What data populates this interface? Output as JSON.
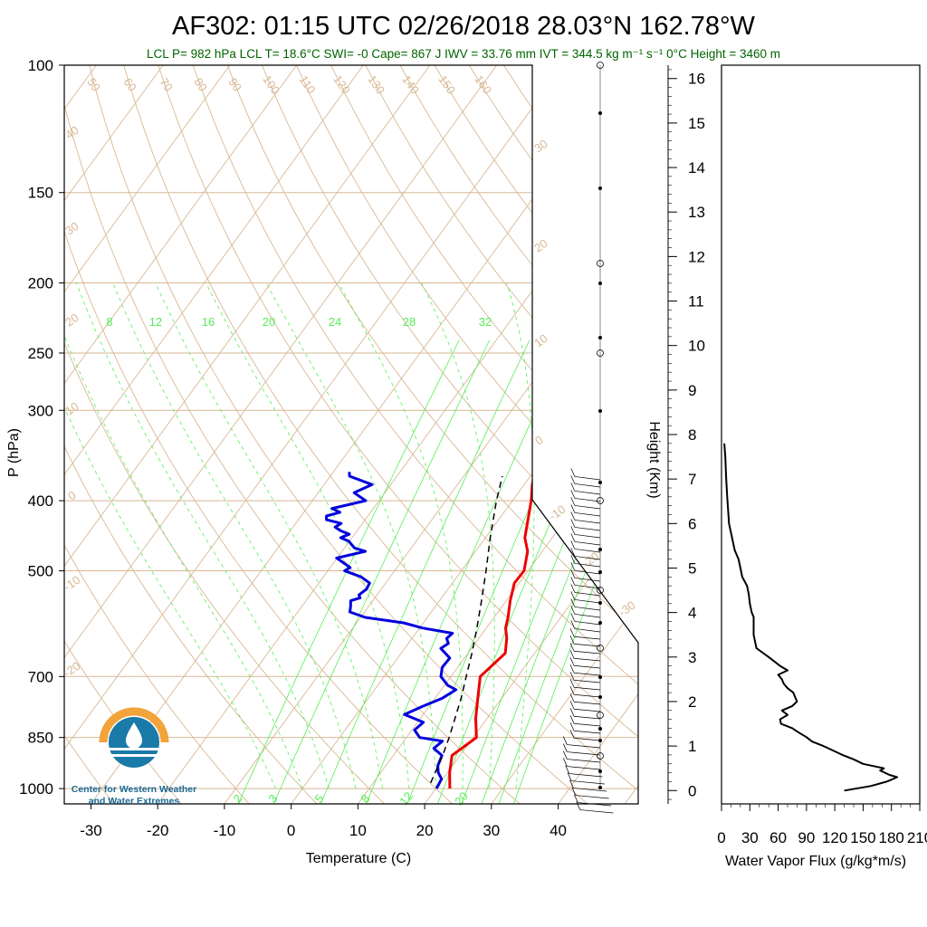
{
  "header": {
    "title": "AF302: 01:15 UTC 02/26/2018  28.03°N 162.78°W",
    "subtitle": "LCL P= 982 hPa  LCL T= 18.6°C  SWI= -0  Cape= 867 J  IWV = 33.76 mm  IVT = 344.5 kg m⁻¹ s⁻¹  0°C Height = 3460 m"
  },
  "colors": {
    "temperature": "#ee0000",
    "dewpoint": "#0000dd",
    "parcel": "#000000",
    "background_lines": "#d8b894",
    "mixing_ratio": "#55ee55",
    "subtitle": "#006400",
    "logo_orange": "#f2a33a",
    "logo_blue": "#1a7aa8"
  },
  "logo": {
    "line1": "Center for Western Weather",
    "line2": "and Water Extremes"
  },
  "chart_data": [
    {
      "type": "line",
      "chart_kind": "skew-t log-p",
      "xlabel": "Temperature (C)",
      "ylabel": "P (hPa)",
      "x_ticks": [
        -30,
        -20,
        -10,
        0,
        10,
        20,
        30,
        40
      ],
      "y_ticks": [
        100,
        150,
        200,
        250,
        300,
        400,
        500,
        700,
        850,
        1000
      ],
      "xlim": [
        -34,
        52
      ],
      "ylim": [
        1050,
        100
      ],
      "y_scale": "log",
      "isotherm_labels": [
        "50",
        "60",
        "70",
        "80",
        "90",
        "100",
        "110",
        "120",
        "130",
        "140",
        "150",
        "160"
      ],
      "dry_adiabat_labels": [
        "40",
        "30",
        "20",
        "10",
        "0",
        "-10",
        "-20",
        "30",
        "20",
        "10",
        "0",
        "-10",
        "-20",
        "-30"
      ],
      "mixing_ratio_top_labels": [
        "8",
        "12",
        "16",
        "20",
        "24",
        "28",
        "32"
      ],
      "mixing_ratio_bottom_labels": [
        "2",
        "3",
        "5",
        "8",
        "12",
        "20"
      ],
      "series": [
        {
          "key": "temperature",
          "p": [
            1000,
            950,
            900,
            850,
            800,
            750,
            700,
            650,
            620,
            600,
            580,
            550,
            520,
            500,
            470,
            450,
            430,
            400,
            380,
            365
          ],
          "t": [
            22.1,
            20.3,
            18.8,
            20.5,
            18.3,
            16.4,
            14.4,
            15.6,
            14.2,
            12.9,
            12.1,
            10.6,
            9.3,
            9.4,
            7.8,
            5.9,
            4.7,
            2.8,
            1.2,
            0.2
          ]
        },
        {
          "key": "dewpoint",
          "p": [
            1000,
            970,
            950,
            930,
            900,
            880,
            860,
            850,
            830,
            810,
            790,
            770,
            750,
            730,
            720,
            700,
            680,
            660,
            640,
            630,
            620,
            610,
            600,
            590,
            580,
            570,
            560,
            550,
            545,
            540,
            530,
            520,
            510,
            500,
            495,
            490,
            480,
            470,
            465,
            460,
            455,
            450,
            445,
            440,
            435,
            430,
            425,
            420,
            415,
            410,
            400,
            390,
            380,
            370,
            365
          ],
          "t": [
            20.1,
            19.8,
            18.6,
            17.8,
            17.3,
            15.3,
            15.8,
            12.0,
            10.4,
            10.9,
            7.2,
            9.0,
            11.1,
            12.2,
            10.5,
            8.5,
            7.7,
            7.8,
            5.4,
            6.0,
            5.2,
            5.5,
            0.5,
            -3.0,
            -9.3,
            -12.2,
            -12.7,
            -13.3,
            -12.2,
            -12.7,
            -12.2,
            -12.4,
            -14.3,
            -17.5,
            -17.0,
            -18.0,
            -20.1,
            -16.5,
            -18.5,
            -19.3,
            -20.1,
            -21.7,
            -20.8,
            -22.5,
            -23.7,
            -23.2,
            -25.8,
            -26.2,
            -24.6,
            -26.2,
            -22.0,
            -24.6,
            -22.8,
            -27.1,
            -27.6
          ]
        },
        {
          "key": "parcel",
          "p": [
            982,
            900,
            850,
            800,
            750,
            700,
            650,
            600,
            550,
            500,
            450,
            400,
            370
          ],
          "t": [
            18.6,
            17.4,
            16.4,
            15.2,
            13.9,
            12.3,
            10.6,
            8.6,
            6.3,
            3.7,
            0.7,
            -2.4,
            -4.2
          ]
        }
      ]
    },
    {
      "type": "line",
      "xlabel": "Water Vapor Flux (g/kg*m/s)",
      "ylabel": "Height (Km)",
      "x_ticks": [
        "0",
        "30",
        "60",
        "90",
        "120",
        "150",
        "180",
        "210"
      ],
      "y_ticks": [
        "0",
        "1",
        "2",
        "3",
        "4",
        "5",
        "6",
        "7",
        "8",
        "9",
        "10",
        "11",
        "12",
        "13",
        "14",
        "15",
        "16"
      ],
      "xlim": [
        0,
        210
      ],
      "ylim": [
        -0.3,
        16.3
      ],
      "series": [
        {
          "key": "wvflux",
          "height_km": [
            0.0,
            0.1,
            0.2,
            0.3,
            0.35,
            0.45,
            0.5,
            0.6,
            0.7,
            0.8,
            0.9,
            1.0,
            1.1,
            1.2,
            1.3,
            1.4,
            1.5,
            1.6,
            1.7,
            1.8,
            1.9,
            2.0,
            2.1,
            2.2,
            2.3,
            2.4,
            2.5,
            2.6,
            2.7,
            2.8,
            3.0,
            3.2,
            3.4,
            3.5,
            3.7,
            3.9,
            4.0,
            4.2,
            4.4,
            4.6,
            4.8,
            5.0,
            5.2,
            5.4,
            5.6,
            5.8,
            6.0,
            6.3,
            6.6,
            7.0,
            7.5,
            7.8
          ],
          "flux": [
            130,
            158,
            175,
            186,
            178,
            168,
            172,
            150,
            140,
            128,
            118,
            108,
            96,
            90,
            82,
            75,
            63,
            62,
            70,
            64,
            75,
            80,
            78,
            76,
            70,
            66,
            64,
            60,
            70,
            62,
            50,
            37,
            35,
            34,
            34,
            34,
            32,
            30,
            29,
            27,
            22,
            20,
            18,
            14,
            12,
            10,
            8,
            7,
            6,
            5,
            4,
            3
          ]
        }
      ]
    }
  ]
}
